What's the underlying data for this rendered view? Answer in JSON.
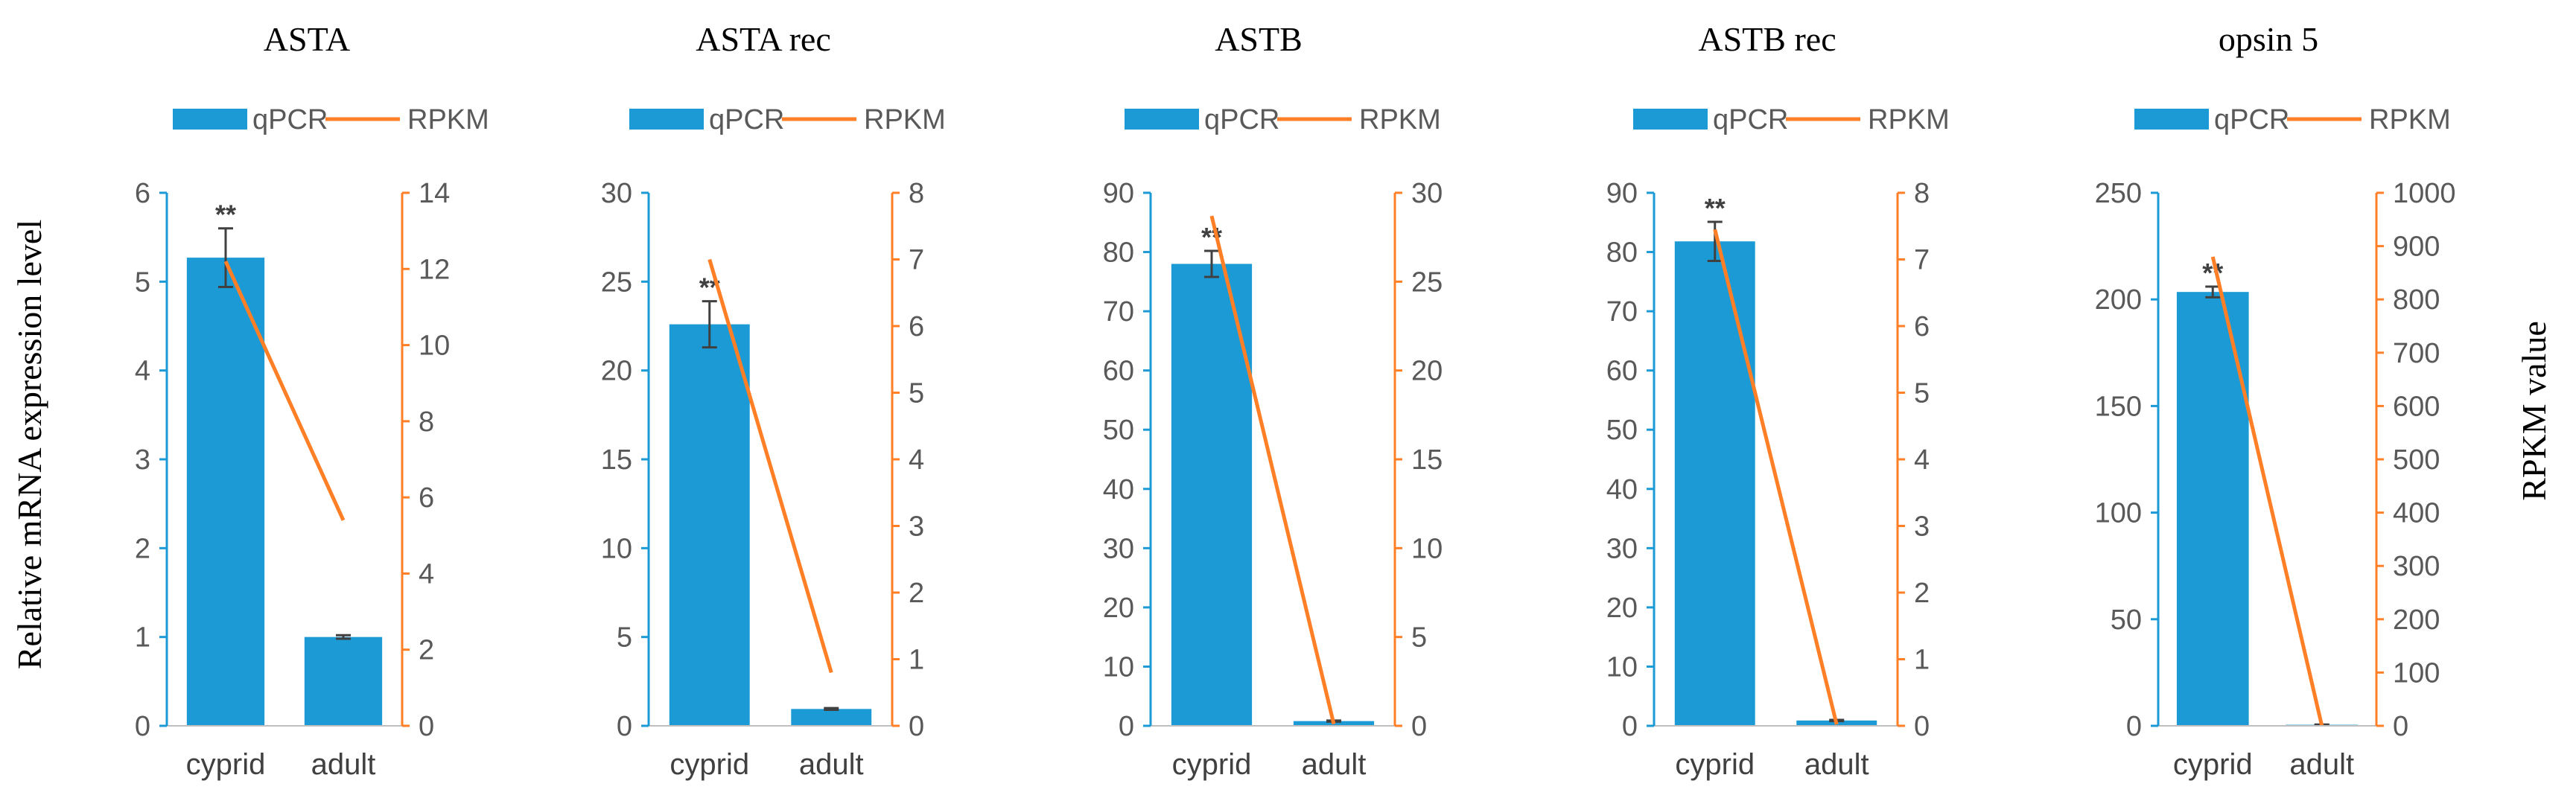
{
  "colors": {
    "bar": "#1b9ad6",
    "line": "#ff7f27",
    "errorbar": "#404040",
    "text": "#595959"
  },
  "left_axis_label": "Relative mRNA expression level",
  "right_axis_label": "RPKM value",
  "chart_data": [
    {
      "type": "bar",
      "title": "ASTA",
      "categories": [
        "cyprid",
        "adult"
      ],
      "legend": [
        "qPCR",
        "RPKM"
      ],
      "legend_position": "top",
      "series": [
        {
          "name": "qPCR",
          "type": "bar",
          "axis": "left",
          "values": [
            5.27,
            1.0
          ],
          "error": [
            0.33,
            0.02
          ]
        },
        {
          "name": "RPKM",
          "type": "line",
          "axis": "right",
          "values": [
            12.2,
            5.4
          ]
        }
      ],
      "ylim": [
        0,
        6
      ],
      "yticks": [
        "0",
        "1",
        "2",
        "3",
        "4",
        "5",
        "6"
      ],
      "y2lim": [
        0,
        14
      ],
      "y2ticks": [
        "0",
        "2",
        "4",
        "6",
        "8",
        "10",
        "12",
        "14"
      ],
      "annotations": [
        "**"
      ]
    },
    {
      "type": "bar",
      "title": "ASTA rec",
      "categories": [
        "cyprid",
        "adult"
      ],
      "legend": [
        "qPCR",
        "RPKM"
      ],
      "legend_position": "top",
      "series": [
        {
          "name": "qPCR",
          "type": "bar",
          "axis": "left",
          "values": [
            22.6,
            0.95
          ],
          "error": [
            1.3,
            0.05
          ]
        },
        {
          "name": "RPKM",
          "type": "line",
          "axis": "right",
          "values": [
            7.0,
            0.8
          ]
        }
      ],
      "ylim": [
        0,
        30
      ],
      "yticks": [
        "0",
        "5",
        "10",
        "15",
        "20",
        "25",
        "30"
      ],
      "y2lim": [
        0,
        8
      ],
      "y2ticks": [
        "0",
        "1",
        "2",
        "3",
        "4",
        "5",
        "6",
        "7",
        "8"
      ],
      "annotations": [
        "**"
      ]
    },
    {
      "type": "bar",
      "title": "ASTB",
      "categories": [
        "cyprid",
        "adult"
      ],
      "legend": [
        "qPCR",
        "RPKM"
      ],
      "legend_position": "top",
      "series": [
        {
          "name": "qPCR",
          "type": "bar",
          "axis": "left",
          "values": [
            78.0,
            0.8
          ],
          "error": [
            2.2,
            0.1
          ]
        },
        {
          "name": "RPKM",
          "type": "line",
          "axis": "right",
          "values": [
            28.7,
            0.1
          ]
        }
      ],
      "ylim": [
        0,
        90
      ],
      "yticks": [
        "0",
        "10",
        "20",
        "30",
        "40",
        "50",
        "60",
        "70",
        "80",
        "90"
      ],
      "y2lim": [
        0,
        30
      ],
      "y2ticks": [
        "0",
        "5",
        "10",
        "15",
        "20",
        "25",
        "30"
      ],
      "annotations": [
        "**"
      ]
    },
    {
      "type": "bar",
      "title": "ASTB rec",
      "categories": [
        "cyprid",
        "adult"
      ],
      "legend": [
        "qPCR",
        "RPKM"
      ],
      "legend_position": "top",
      "series": [
        {
          "name": "qPCR",
          "type": "bar",
          "axis": "left",
          "values": [
            81.8,
            0.9
          ],
          "error": [
            3.3,
            0.1
          ]
        },
        {
          "name": "RPKM",
          "type": "line",
          "axis": "right",
          "values": [
            7.45,
            0.02
          ]
        }
      ],
      "ylim": [
        0,
        90
      ],
      "yticks": [
        "0",
        "10",
        "20",
        "30",
        "40",
        "50",
        "60",
        "70",
        "80",
        "90"
      ],
      "y2lim": [
        0,
        8
      ],
      "y2ticks": [
        "0",
        "1",
        "2",
        "3",
        "4",
        "5",
        "6",
        "7",
        "8"
      ],
      "annotations": [
        "**"
      ]
    },
    {
      "type": "bar",
      "title": "opsin 5",
      "categories": [
        "cyprid",
        "adult"
      ],
      "legend": [
        "qPCR",
        "RPKM"
      ],
      "legend_position": "top",
      "series": [
        {
          "name": "qPCR",
          "type": "bar",
          "axis": "left",
          "values": [
            203.5,
            0.5
          ],
          "error": [
            2.5,
            0.1
          ]
        },
        {
          "name": "RPKM",
          "type": "line",
          "axis": "right",
          "values": [
            880,
            0
          ]
        }
      ],
      "ylim": [
        0,
        250
      ],
      "yticks": [
        "0",
        "50",
        "100",
        "150",
        "200",
        "250"
      ],
      "y2lim": [
        0,
        1000
      ],
      "y2ticks": [
        "0",
        "100",
        "200",
        "300",
        "400",
        "500",
        "600",
        "700",
        "800",
        "900",
        "1000"
      ],
      "annotations": [
        "**"
      ]
    }
  ]
}
